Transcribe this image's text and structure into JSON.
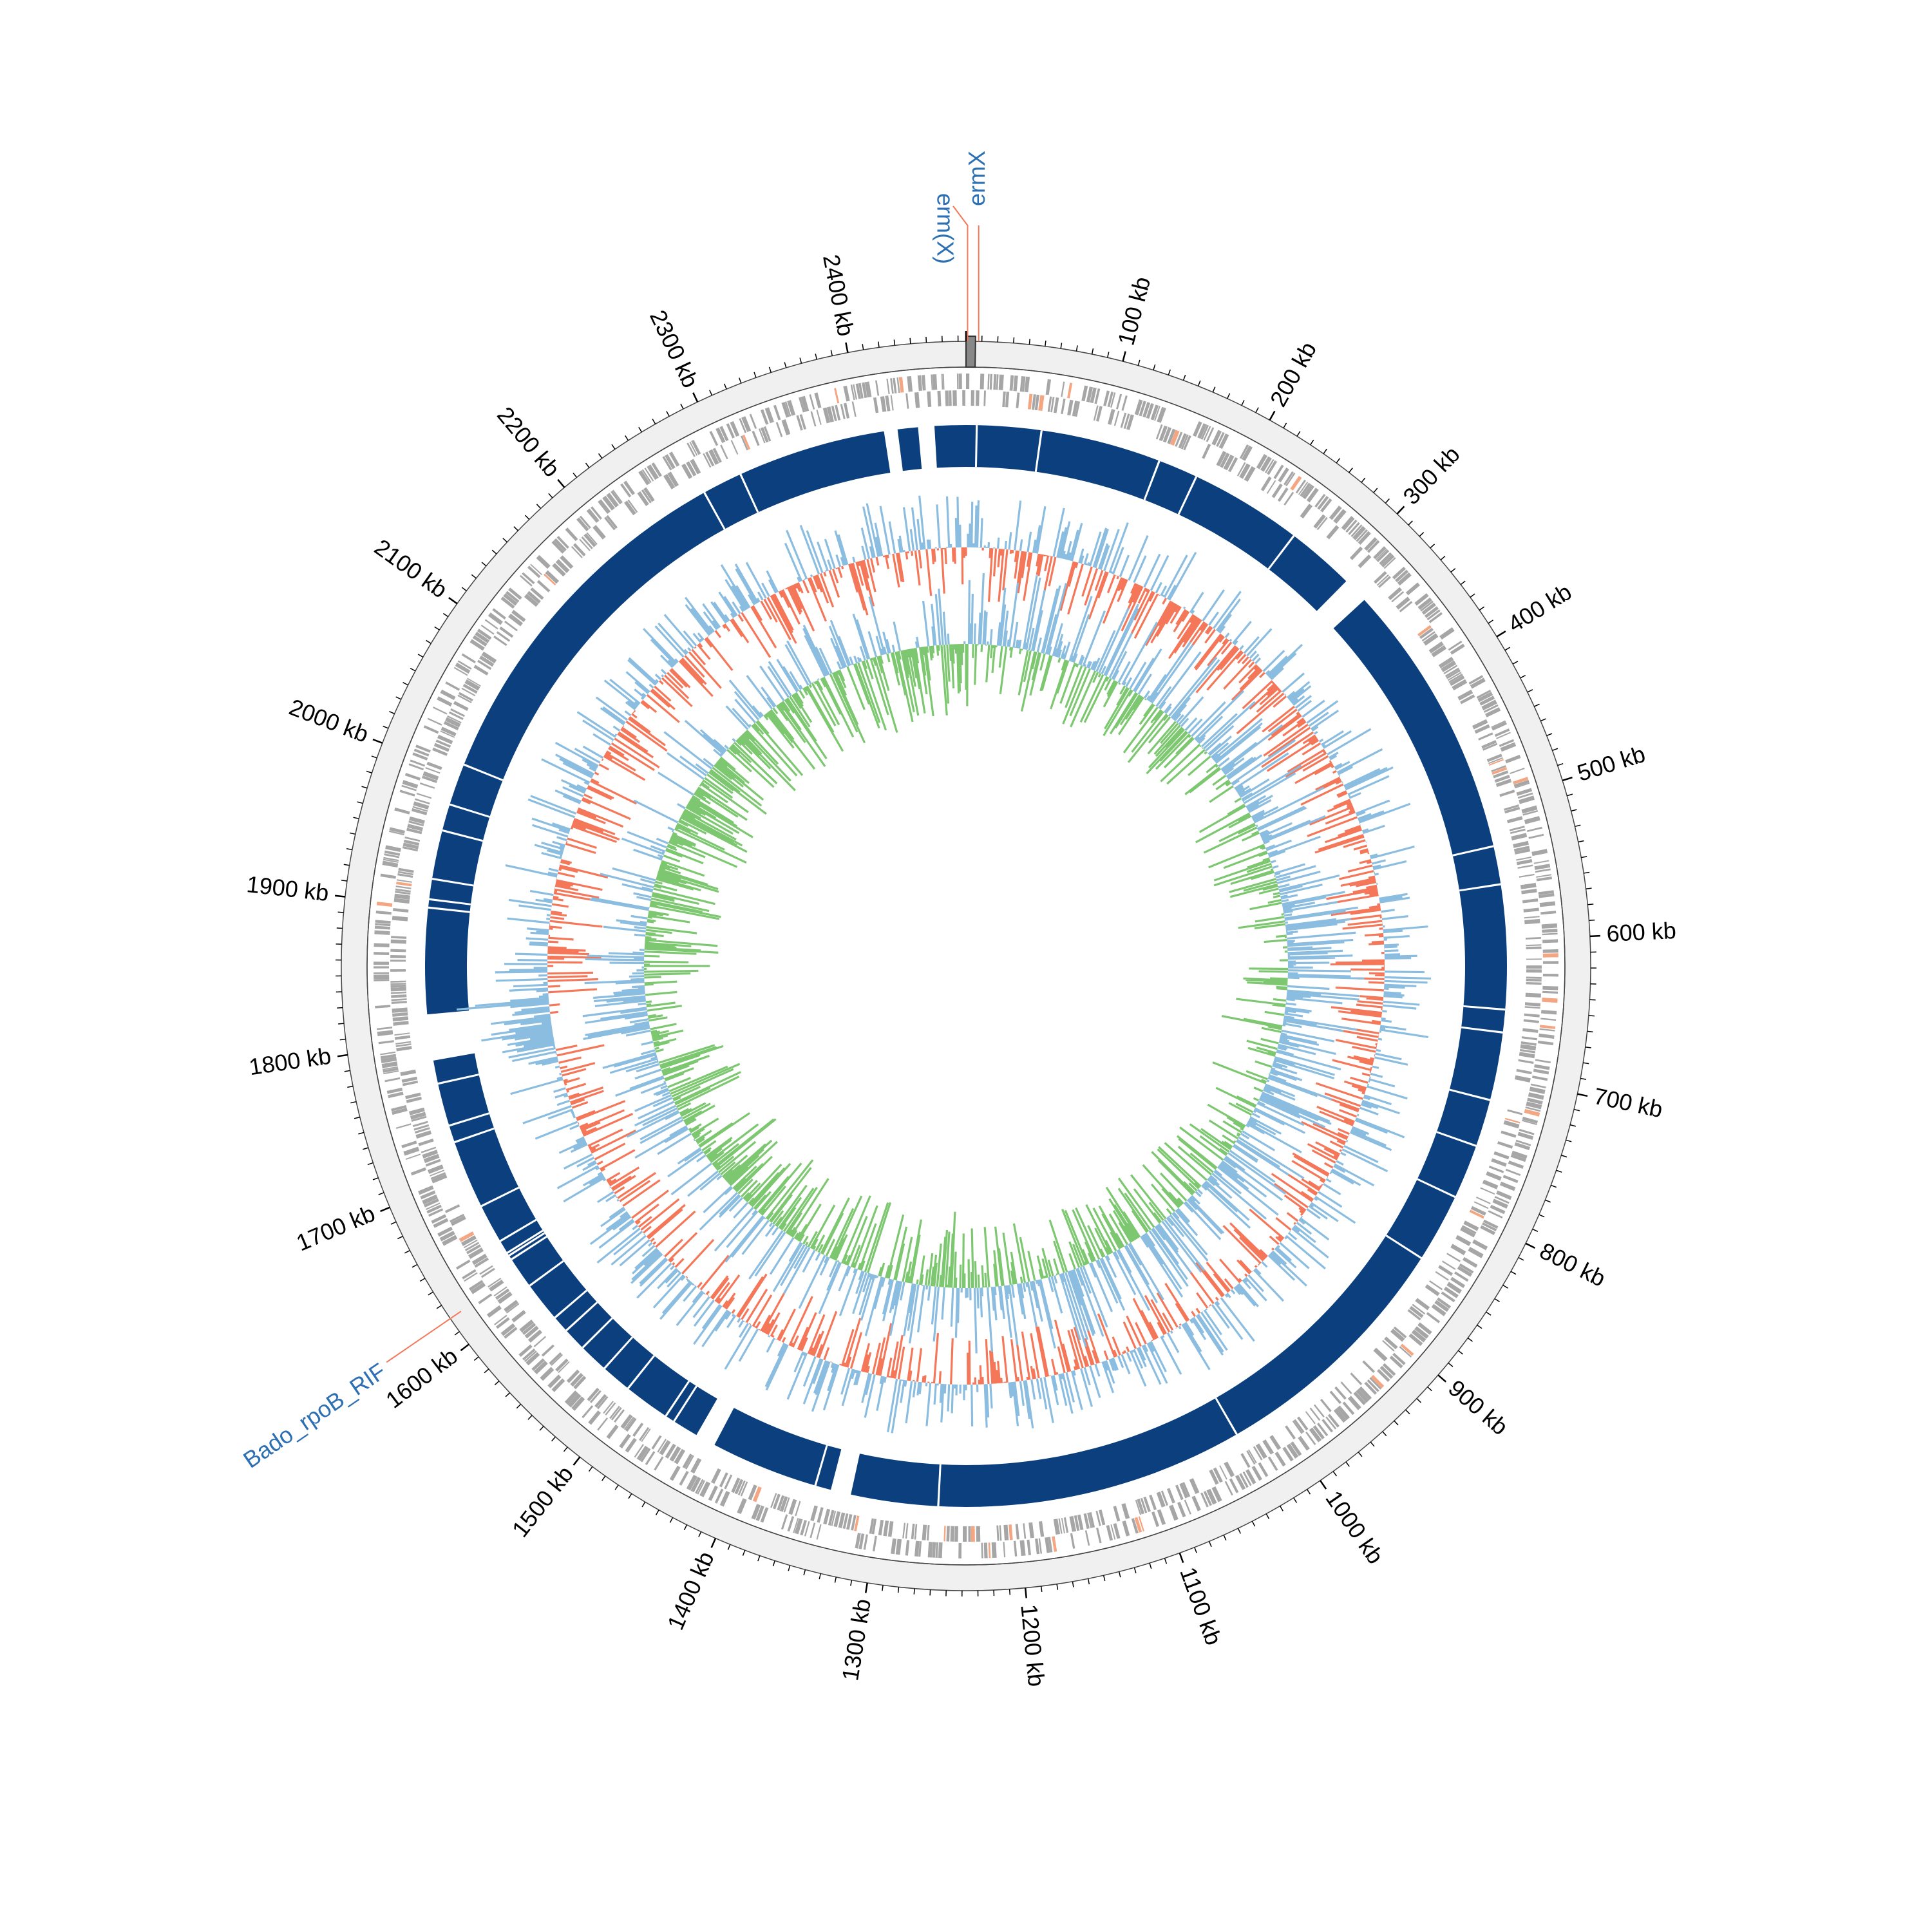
{
  "map": {
    "genome_length_kb": 2475,
    "tick_labels": [
      "100 kb",
      "200 kb",
      "300 kb",
      "400 kb",
      "500 kb",
      "600 kb",
      "700 kb",
      "800 kb",
      "900 kb",
      "1000 kb",
      "1100 kb",
      "1200 kb",
      "1300 kb",
      "1400 kb",
      "1500 kb",
      "1600 kb",
      "1700 kb",
      "1800 kb",
      "1900 kb",
      "2000 kb",
      "2100 kb",
      "2200 kb",
      "2300 kb",
      "2400 kb"
    ],
    "annotations": [
      {
        "label": "ermX",
        "position_kb": 8
      },
      {
        "label": "erm(X)",
        "position_kb": 1
      },
      {
        "label": "Bado_rpoB_RIF",
        "position_kb": 1620
      }
    ],
    "contig_gaps_kb": [
      [
        2415,
        2425
      ],
      [
        2440,
        2452
      ],
      [
        307,
        326
      ],
      [
        1787,
        1821
      ],
      [
        1428,
        1443
      ],
      [
        1322,
        1337
      ]
    ],
    "colors": {
      "backbone": "#f0f0f0",
      "cds": "#a6a6a6",
      "special_genes": "#f4a582",
      "homology": "#0b3f7d",
      "gc_content_above": "#8bbde0",
      "gc_content_below": "#f4775a",
      "gc_skew_positive": "#8bbde0",
      "gc_skew_negative": "#7cc770",
      "label_line": "#f4775a",
      "label_text": "#2c6fb2"
    }
  }
}
